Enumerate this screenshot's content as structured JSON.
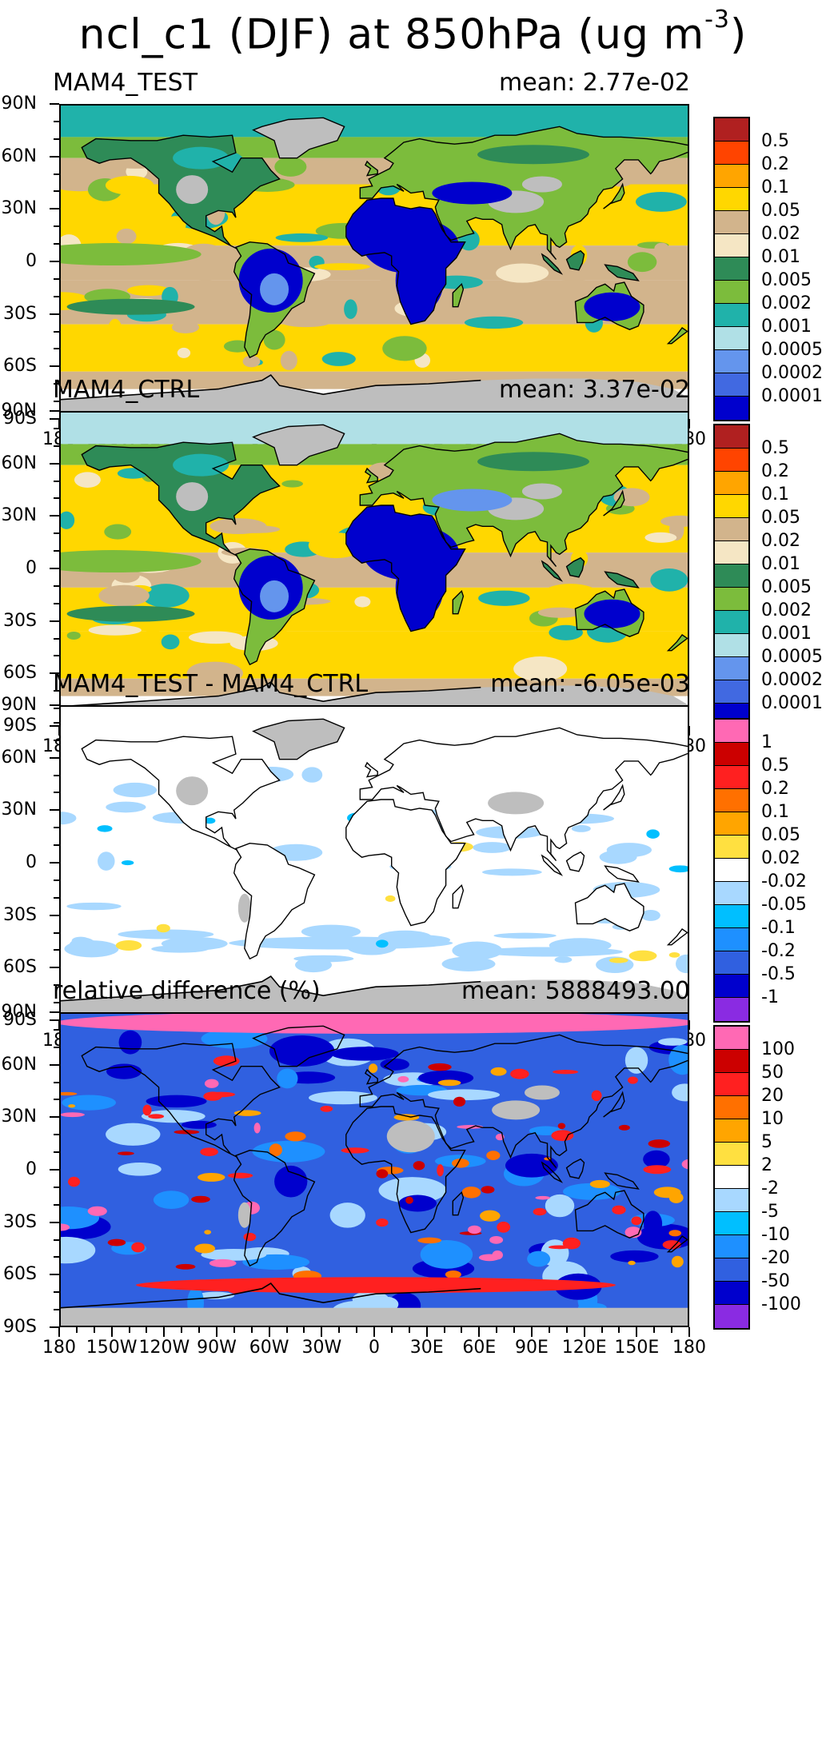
{
  "title": {
    "main": "ncl_c1 (DJF) at 850hPa (ug m",
    "superscript": "-3",
    "closing": ")"
  },
  "lat_labels": [
    "90N",
    "60N",
    "30N",
    "0",
    "30S",
    "60S",
    "90S"
  ],
  "lon_labels": [
    "180",
    "150W",
    "120W",
    "90W",
    "60W",
    "30W",
    "0",
    "30E",
    "60E",
    "90E",
    "120E",
    "150E",
    "180"
  ],
  "panels": [
    {
      "name": "panel-test",
      "title": "MAM4_TEST",
      "mean": "mean: 2.77e-02",
      "colorbar": {
        "labels": [
          "0.5",
          "0.2",
          "0.1",
          "0.05",
          "0.02",
          "0.01",
          "0.005",
          "0.002",
          "0.001",
          "0.0005",
          "0.0002",
          "0.0001"
        ],
        "colors": [
          "#b02020",
          "#ff4400",
          "#ffa500",
          "#ffd700",
          "#d2b48c",
          "#f5e6c4",
          "#2e8b57",
          "#7cbc3c",
          "#20b2aa",
          "#b0e0e6",
          "#6495ed",
          "#4169e1",
          "#0000cd"
        ]
      },
      "map_style": "conc"
    },
    {
      "name": "panel-ctrl",
      "title": "MAM4_CTRL",
      "mean": "mean: 3.37e-02",
      "colorbar": {
        "labels": [
          "0.5",
          "0.2",
          "0.1",
          "0.05",
          "0.02",
          "0.01",
          "0.005",
          "0.002",
          "0.001",
          "0.0005",
          "0.0002",
          "0.0001"
        ],
        "colors": [
          "#b02020",
          "#ff4400",
          "#ffa500",
          "#ffd700",
          "#d2b48c",
          "#f5e6c4",
          "#2e8b57",
          "#7cbc3c",
          "#20b2aa",
          "#b0e0e6",
          "#6495ed",
          "#4169e1",
          "#0000cd"
        ]
      },
      "map_style": "conc2"
    },
    {
      "name": "panel-diff",
      "title": "MAM4_TEST - MAM4_CTRL",
      "mean": "mean: -6.05e-03",
      "colorbar": {
        "labels": [
          "1",
          "0.5",
          "0.2",
          "0.1",
          "0.05",
          "0.02",
          "-0.02",
          "-0.05",
          "-0.1",
          "-0.2",
          "-0.5",
          "-1"
        ],
        "colors": [
          "#ff69b4",
          "#cc0000",
          "#ff2020",
          "#ff7000",
          "#ffa500",
          "#ffe040",
          "#ffffff",
          "#a8d8ff",
          "#00bfff",
          "#1e90ff",
          "#3060e0",
          "#0000cd",
          "#8a2be2"
        ]
      },
      "map_style": "diff"
    },
    {
      "name": "panel-reldiff",
      "title": "relative difference (%)",
      "mean": "mean: 5888493.00",
      "colorbar": {
        "labels": [
          "100",
          "50",
          "20",
          "10",
          "5",
          "2",
          "-2",
          "-5",
          "-10",
          "-20",
          "-50",
          "-100"
        ],
        "colors": [
          "#ff69b4",
          "#cc0000",
          "#ff2020",
          "#ff7000",
          "#ffa500",
          "#ffe040",
          "#ffffff",
          "#a8d8ff",
          "#00bfff",
          "#1e90ff",
          "#3060e0",
          "#0000cd",
          "#8a2be2"
        ]
      },
      "map_style": "rel"
    }
  ],
  "colors": {
    "missing": "#bebebe",
    "coast": "#000000"
  }
}
